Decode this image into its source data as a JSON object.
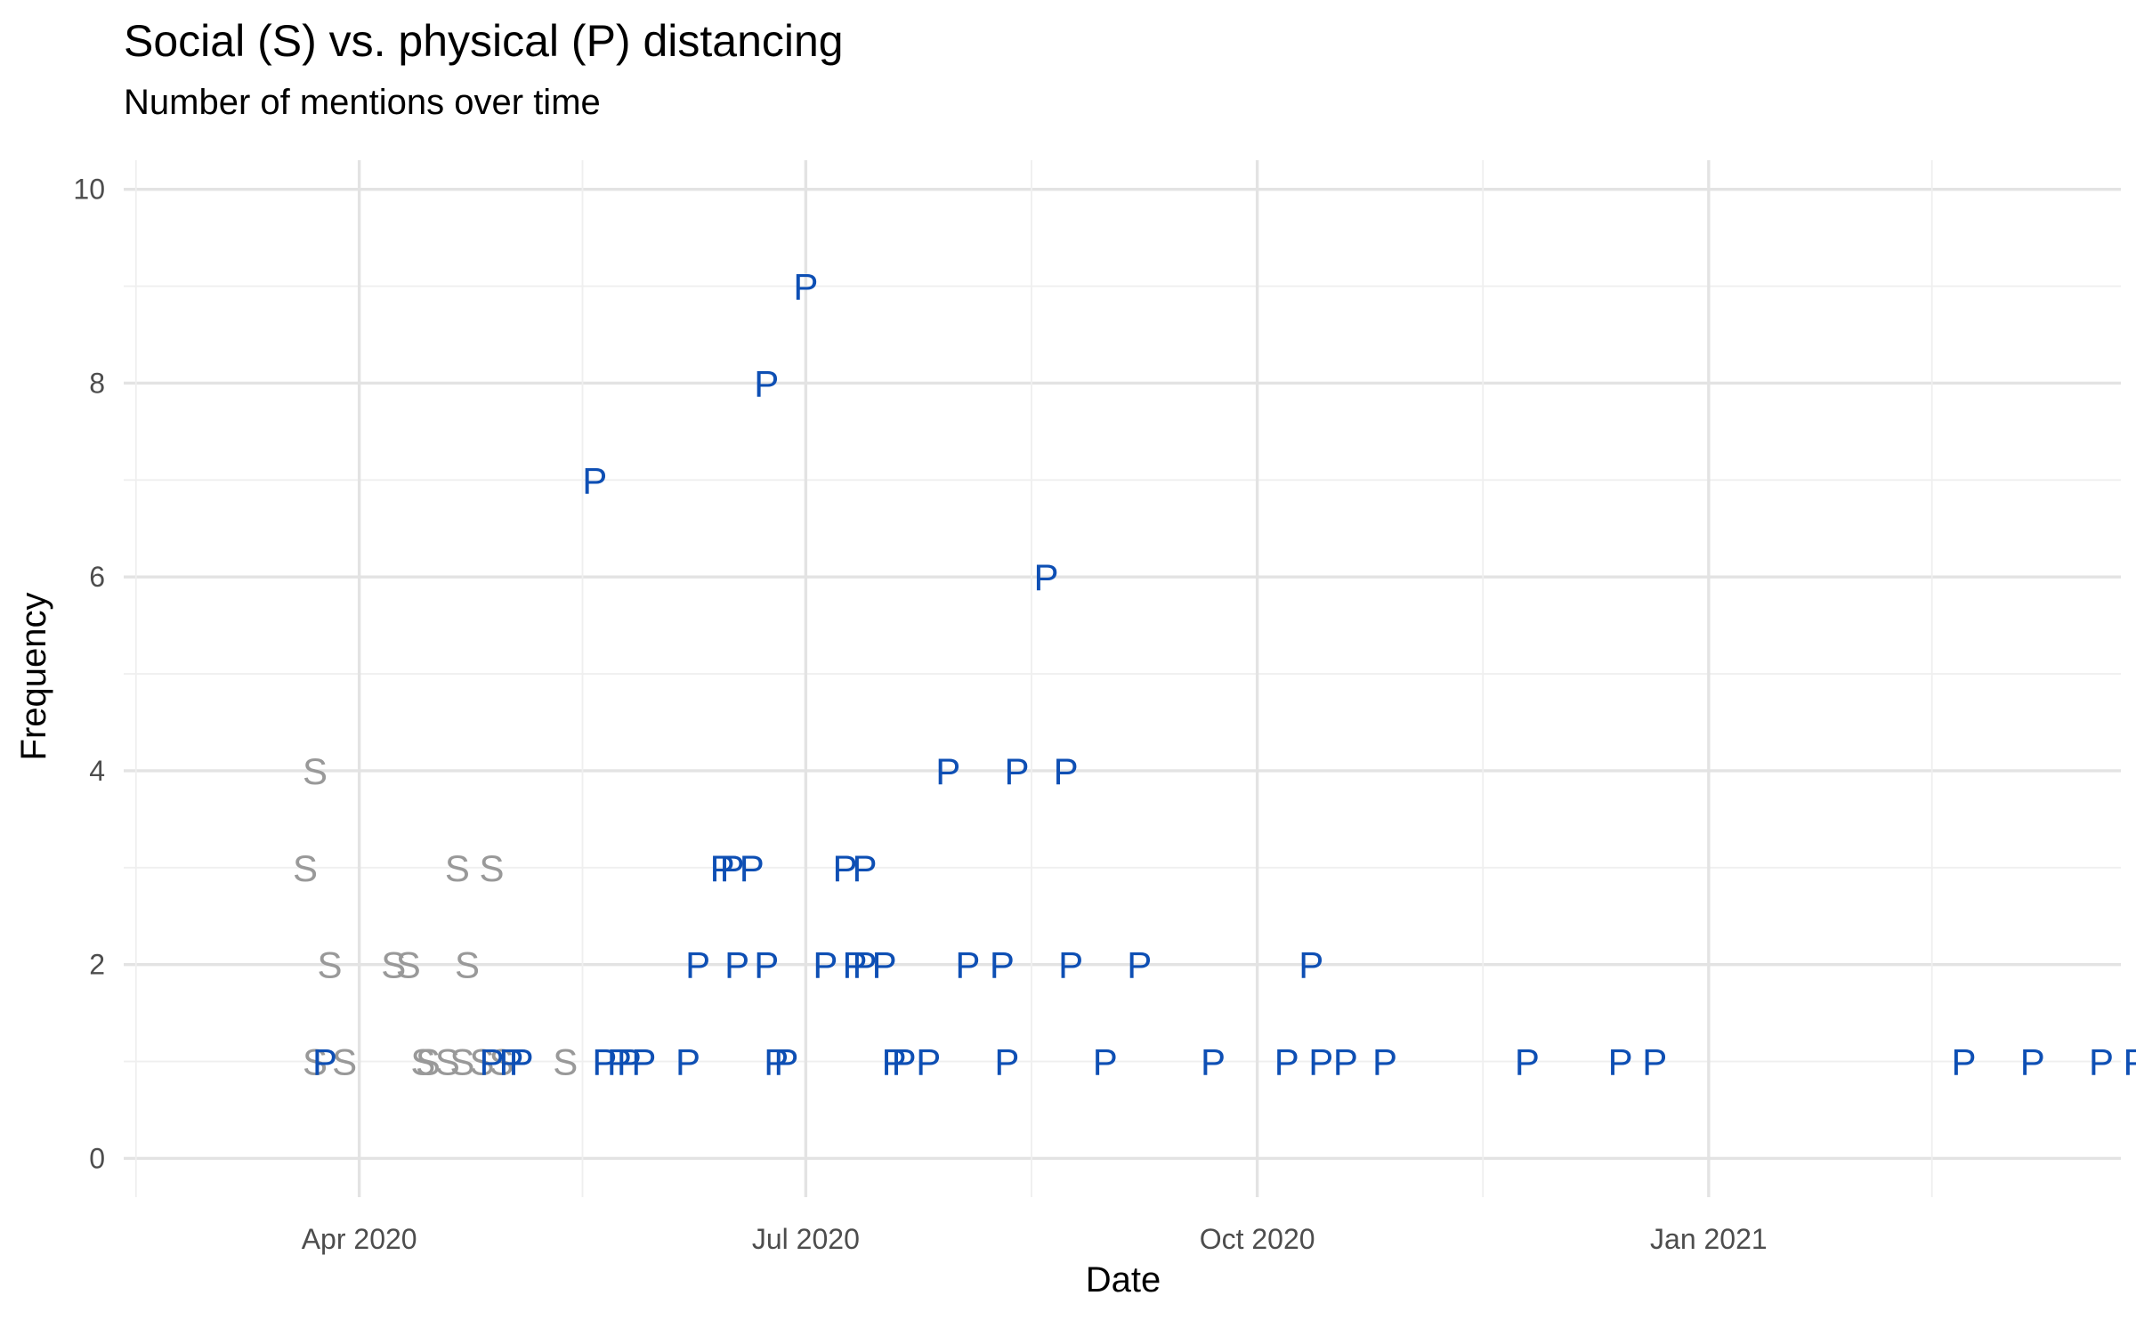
{
  "chart_data": {
    "type": "scatter",
    "title": "Social (S) vs. physical (P) distancing",
    "subtitle": "Number of mentions over time",
    "xlabel": "Date",
    "ylabel": "Frequency",
    "xlim": [
      "2020-02-13",
      "2021-03-26"
    ],
    "ylim": [
      -0.4,
      10.3
    ],
    "x_ticks": [
      {
        "date": "2020-04-01",
        "label": "Apr 2020"
      },
      {
        "date": "2020-07-01",
        "label": "Jul 2020"
      },
      {
        "date": "2020-10-01",
        "label": "Oct 2020"
      },
      {
        "date": "2021-01-01",
        "label": "Jan 2021"
      }
    ],
    "y_ticks": [
      0,
      2,
      4,
      6,
      8,
      10
    ],
    "grid": true,
    "legend": "none",
    "colors": {
      "S": "#999999",
      "P": "#0e4fb4"
    },
    "series": [
      {
        "marker": "S",
        "points": [
          {
            "x": "2020-03-21",
            "y": 3
          },
          {
            "x": "2020-03-23",
            "y": 4
          },
          {
            "x": "2020-03-23",
            "y": 1
          },
          {
            "x": "2020-03-26",
            "y": 2
          },
          {
            "x": "2020-03-29",
            "y": 1
          },
          {
            "x": "2020-04-08",
            "y": 2
          },
          {
            "x": "2020-04-11",
            "y": 2
          },
          {
            "x": "2020-04-14",
            "y": 1
          },
          {
            "x": "2020-04-15",
            "y": 1
          },
          {
            "x": "2020-04-19",
            "y": 1
          },
          {
            "x": "2020-04-21",
            "y": 3
          },
          {
            "x": "2020-04-22",
            "y": 1
          },
          {
            "x": "2020-04-23",
            "y": 2
          },
          {
            "x": "2020-04-26",
            "y": 1
          },
          {
            "x": "2020-04-28",
            "y": 3
          },
          {
            "x": "2020-04-30",
            "y": 1
          },
          {
            "x": "2020-05-13",
            "y": 1
          }
        ]
      },
      {
        "marker": "P",
        "points": [
          {
            "x": "2020-03-25",
            "y": 1
          },
          {
            "x": "2020-04-28",
            "y": 1
          },
          {
            "x": "2020-05-02",
            "y": 1
          },
          {
            "x": "2020-05-04",
            "y": 1
          },
          {
            "x": "2020-05-19",
            "y": 7
          },
          {
            "x": "2020-05-21",
            "y": 1
          },
          {
            "x": "2020-05-24",
            "y": 1
          },
          {
            "x": "2020-05-26",
            "y": 1
          },
          {
            "x": "2020-05-29",
            "y": 1
          },
          {
            "x": "2020-06-07",
            "y": 1
          },
          {
            "x": "2020-06-09",
            "y": 2
          },
          {
            "x": "2020-06-14",
            "y": 3
          },
          {
            "x": "2020-06-16",
            "y": 3
          },
          {
            "x": "2020-06-17",
            "y": 2
          },
          {
            "x": "2020-06-20",
            "y": 3
          },
          {
            "x": "2020-06-23",
            "y": 8
          },
          {
            "x": "2020-06-23",
            "y": 2
          },
          {
            "x": "2020-06-25",
            "y": 1
          },
          {
            "x": "2020-06-27",
            "y": 1
          },
          {
            "x": "2020-07-01",
            "y": 9
          },
          {
            "x": "2020-07-05",
            "y": 2
          },
          {
            "x": "2020-07-09",
            "y": 3
          },
          {
            "x": "2020-07-11",
            "y": 2
          },
          {
            "x": "2020-07-13",
            "y": 3
          },
          {
            "x": "2020-07-13",
            "y": 2
          },
          {
            "x": "2020-07-17",
            "y": 2
          },
          {
            "x": "2020-07-19",
            "y": 1
          },
          {
            "x": "2020-07-21",
            "y": 1
          },
          {
            "x": "2020-07-26",
            "y": 1
          },
          {
            "x": "2020-07-30",
            "y": 4
          },
          {
            "x": "2020-08-03",
            "y": 2
          },
          {
            "x": "2020-08-10",
            "y": 2
          },
          {
            "x": "2020-08-11",
            "y": 1
          },
          {
            "x": "2020-08-13",
            "y": 4
          },
          {
            "x": "2020-08-19",
            "y": 6
          },
          {
            "x": "2020-08-23",
            "y": 4
          },
          {
            "x": "2020-08-24",
            "y": 2
          },
          {
            "x": "2020-08-31",
            "y": 1
          },
          {
            "x": "2020-09-07",
            "y": 2
          },
          {
            "x": "2020-09-22",
            "y": 1
          },
          {
            "x": "2020-10-07",
            "y": 1
          },
          {
            "x": "2020-10-12",
            "y": 2
          },
          {
            "x": "2020-10-14",
            "y": 1
          },
          {
            "x": "2020-10-19",
            "y": 1
          },
          {
            "x": "2020-10-27",
            "y": 1
          },
          {
            "x": "2020-11-25",
            "y": 1
          },
          {
            "x": "2020-12-14",
            "y": 1
          },
          {
            "x": "2020-12-21",
            "y": 1
          },
          {
            "x": "2021-02-22",
            "y": 1
          },
          {
            "x": "2021-03-08",
            "y": 1
          },
          {
            "x": "2021-03-22",
            "y": 1
          },
          {
            "x": "2021-03-29",
            "y": 1
          }
        ]
      }
    ]
  }
}
